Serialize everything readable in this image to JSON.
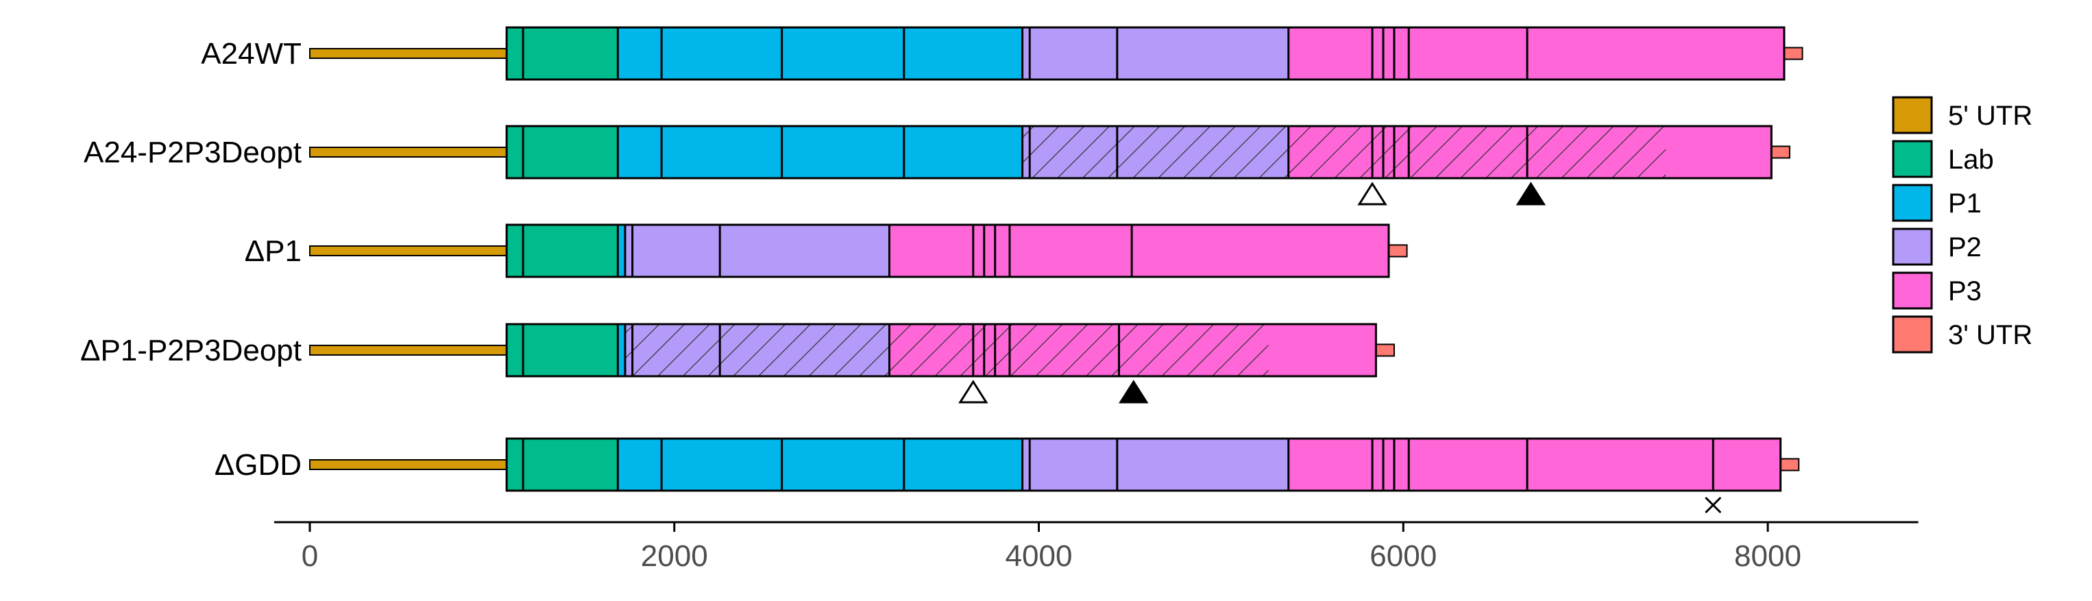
{
  "constructs": [
    {
      "id": "a24wt",
      "label": "A24WT",
      "utr5_start": 0,
      "orf_start": 1080,
      "orf_end": 8090,
      "utr3_end": 8190,
      "segments": [
        {
          "region": "Lab",
          "from": 1080,
          "to": 1690
        },
        {
          "region": "P1",
          "from": 1690,
          "to": 3910
        },
        {
          "region": "P2",
          "from": 3910,
          "to": 5370
        },
        {
          "region": "P3",
          "from": 5370,
          "to": 8090
        }
      ],
      "boundaries": [
        1170,
        1690,
        1930,
        2590,
        3260,
        3910,
        3950,
        4430,
        5370,
        5830,
        5890,
        5950,
        6030,
        6680
      ],
      "deopt_range": null,
      "markers": []
    },
    {
      "id": "a24-p2p3deopt",
      "label": "A24-P2P3Deopt",
      "utr5_start": 0,
      "orf_start": 1080,
      "orf_end": 8020,
      "utr3_end": 8120,
      "segments": [
        {
          "region": "Lab",
          "from": 1080,
          "to": 1690
        },
        {
          "region": "P1",
          "from": 1690,
          "to": 3910
        },
        {
          "region": "P2",
          "from": 3910,
          "to": 5370
        },
        {
          "region": "P3",
          "from": 5370,
          "to": 8020
        }
      ],
      "boundaries": [
        1170,
        1690,
        1930,
        2590,
        3260,
        3910,
        3950,
        4430,
        5370,
        5830,
        5890,
        5950,
        6030,
        6680
      ],
      "deopt_range": [
        3910,
        7440
      ],
      "markers": [
        {
          "type": "open-triangle",
          "pos": 5830
        },
        {
          "type": "filled-triangle",
          "pos": 6700
        }
      ]
    },
    {
      "id": "dp1",
      "label": "ΔP1",
      "utr5_start": 0,
      "orf_start": 1080,
      "orf_end": 5920,
      "utr3_end": 6020,
      "segments": [
        {
          "region": "Lab",
          "from": 1080,
          "to": 1690
        },
        {
          "region": "P1",
          "from": 1690,
          "to": 1730
        },
        {
          "region": "P2",
          "from": 1730,
          "to": 3180
        },
        {
          "region": "P3",
          "from": 3180,
          "to": 5920
        }
      ],
      "boundaries": [
        1170,
        1690,
        1730,
        1770,
        2250,
        3180,
        3640,
        3700,
        3760,
        3840,
        4510
      ],
      "deopt_range": null,
      "markers": []
    },
    {
      "id": "dp1-p2p3deopt",
      "label": "ΔP1-P2P3Deopt",
      "utr5_start": 0,
      "orf_start": 1080,
      "orf_end": 5850,
      "utr3_end": 5950,
      "segments": [
        {
          "region": "Lab",
          "from": 1080,
          "to": 1690
        },
        {
          "region": "P1",
          "from": 1690,
          "to": 1730
        },
        {
          "region": "P2",
          "from": 1730,
          "to": 3180
        },
        {
          "region": "P3",
          "from": 3180,
          "to": 5850
        }
      ],
      "boundaries": [
        1170,
        1690,
        1730,
        1770,
        2250,
        3180,
        3640,
        3700,
        3760,
        3840,
        4440
      ],
      "deopt_range": [
        1730,
        5260
      ],
      "markers": [
        {
          "type": "open-triangle",
          "pos": 3640
        },
        {
          "type": "filled-triangle",
          "pos": 4520
        }
      ]
    },
    {
      "id": "dgdd",
      "label": "ΔGDD",
      "utr5_start": 0,
      "orf_start": 1080,
      "orf_end": 8070,
      "utr3_end": 8170,
      "segments": [
        {
          "region": "Lab",
          "from": 1080,
          "to": 1690
        },
        {
          "region": "P1",
          "from": 1690,
          "to": 3910
        },
        {
          "region": "P2",
          "from": 3910,
          "to": 5370
        },
        {
          "region": "P3",
          "from": 5370,
          "to": 8070
        }
      ],
      "boundaries": [
        1170,
        1690,
        1930,
        2590,
        3260,
        3910,
        3950,
        4430,
        5370,
        5830,
        5890,
        5950,
        6030,
        6680,
        7700
      ],
      "deopt_range": null,
      "markers": [
        {
          "type": "cross",
          "pos": 7700
        }
      ]
    }
  ],
  "axis": {
    "min": 0,
    "max": 8600,
    "ticks": [
      0,
      2000,
      4000,
      6000,
      8000
    ],
    "tick_labels": [
      "0",
      "2000",
      "4000",
      "6000",
      "8000"
    ]
  },
  "legend": [
    {
      "key": "utr5",
      "label": "5' UTR",
      "color": "#D69A06"
    },
    {
      "key": "lab",
      "label": "Lab",
      "color": "#00BC8C"
    },
    {
      "key": "p1",
      "label": "P1",
      "color": "#00B6EA"
    },
    {
      "key": "p2",
      "label": "P2",
      "color": "#B49BF9"
    },
    {
      "key": "p3",
      "label": "P3",
      "color": "#FF66D8"
    },
    {
      "key": "utr3",
      "label": "3' UTR",
      "color": "#FF7B72"
    }
  ],
  "colors": {
    "Lab": "#00BC8C",
    "P1": "#00B6EA",
    "P2": "#B49BF9",
    "P3": "#FF66D8",
    "UTR5": "#D69A06",
    "UTR3": "#FF7B72",
    "outline": "#000000",
    "axis_text": "#4d4d4d"
  }
}
